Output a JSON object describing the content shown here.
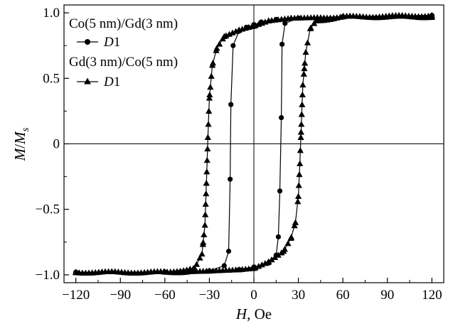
{
  "chart_data": {
    "type": "line",
    "title": "",
    "xlabel": {
      "italic": "H",
      "rest": ", Oe"
    },
    "ylabel": {
      "M": "M",
      "slash": "/",
      "M2": "M",
      "sub": "s"
    },
    "xlim": [
      -128,
      128
    ],
    "ylim": [
      -1.06,
      1.06
    ],
    "xticks": [
      -120,
      -90,
      -60,
      -30,
      0,
      30,
      60,
      90,
      120
    ],
    "xtick_labels": [
      "−120",
      "−90",
      "−60",
      "−30",
      "0",
      "30",
      "60",
      "90",
      "120"
    ],
    "yticks": [
      -1.0,
      -0.5,
      0,
      0.5,
      1.0
    ],
    "ytick_labels": [
      "−1.0",
      "−0.5",
      "0",
      "0.5",
      "1.0"
    ],
    "zero_lines": true,
    "legend": {
      "placement": "top-left",
      "entries": [
        {
          "heading": "Co(5 nm)/Gd(3 nm)",
          "marker": "circle",
          "label_italic": "D",
          "label_rest": "1"
        },
        {
          "heading": "Gd(3 nm)/Co(5 nm)",
          "marker": "triangle",
          "label_italic": "D",
          "label_rest": "1"
        }
      ]
    },
    "series": [
      {
        "heading": "Co(5 nm)/Gd(3 nm)",
        "marker": "circle",
        "descending": [
          [
            120,
            0.98
          ],
          [
            60,
            0.97
          ],
          [
            30,
            0.96
          ],
          [
            15,
            0.95
          ],
          [
            5,
            0.93
          ],
          [
            0,
            0.91
          ],
          [
            -5,
            0.89
          ],
          [
            -10,
            0.86
          ],
          [
            -14,
            0.75
          ],
          [
            -15.5,
            0.3
          ],
          [
            -16,
            -0.27
          ],
          [
            -17,
            -0.82
          ],
          [
            -20,
            -0.93
          ],
          [
            -30,
            -0.97
          ],
          [
            -60,
            -0.98
          ],
          [
            -120,
            -0.98
          ]
        ],
        "ascending": [
          [
            -120,
            -0.98
          ],
          [
            -60,
            -0.98
          ],
          [
            -30,
            -0.97
          ],
          [
            -10,
            -0.96
          ],
          [
            0,
            -0.94
          ],
          [
            10,
            -0.91
          ],
          [
            15,
            -0.85
          ],
          [
            16.5,
            -0.71
          ],
          [
            17.5,
            -0.36
          ],
          [
            18.5,
            0.2
          ],
          [
            19,
            0.76
          ],
          [
            21,
            0.92
          ],
          [
            30,
            0.96
          ],
          [
            60,
            0.97
          ],
          [
            120,
            0.98
          ]
        ]
      },
      {
        "heading": "Gd(3 nm)/Co(5 nm)",
        "marker": "triangle",
        "descending": [
          [
            120,
            0.97
          ],
          [
            60,
            0.97
          ],
          [
            25,
            0.96
          ],
          [
            10,
            0.94
          ],
          [
            0,
            0.9
          ],
          [
            -10,
            0.87
          ],
          [
            -20,
            0.82
          ],
          [
            -25,
            0.73
          ],
          [
            -28,
            0.6
          ],
          [
            -30,
            0.35
          ],
          [
            -31,
            0.05
          ],
          [
            -32,
            -0.3
          ],
          [
            -33,
            -0.62
          ],
          [
            -35,
            -0.84
          ],
          [
            -40,
            -0.95
          ],
          [
            -60,
            -0.98
          ],
          [
            -120,
            -0.98
          ]
        ],
        "ascending": [
          [
            -120,
            -0.98
          ],
          [
            -60,
            -0.98
          ],
          [
            -30,
            -0.97
          ],
          [
            -10,
            -0.96
          ],
          [
            0,
            -0.95
          ],
          [
            10,
            -0.9
          ],
          [
            20,
            -0.82
          ],
          [
            25,
            -0.72
          ],
          [
            28,
            -0.6
          ],
          [
            30,
            -0.4
          ],
          [
            31,
            -0.15
          ],
          [
            32,
            0.15
          ],
          [
            33,
            0.45
          ],
          [
            35,
            0.7
          ],
          [
            38,
            0.88
          ],
          [
            42,
            0.94
          ],
          [
            60,
            0.97
          ],
          [
            120,
            0.98
          ]
        ]
      }
    ]
  }
}
